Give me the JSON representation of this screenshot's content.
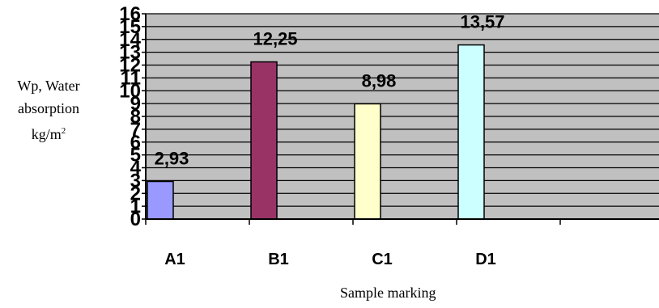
{
  "chart_data": {
    "type": "bar",
    "categories": [
      "A1",
      "B1",
      "C1",
      "D1"
    ],
    "values": [
      2.93,
      12.25,
      8.98,
      13.57
    ],
    "value_labels": [
      "2,93",
      "12,25",
      "8,98",
      "13,57"
    ],
    "ylabel_lines": [
      "Wp, Water",
      "absorption",
      "kg/m"
    ],
    "ylabel_superscript": "2",
    "xlabel": "Sample marking",
    "ylim": [
      0,
      16
    ],
    "yticks": [
      "0",
      "1",
      "2",
      "3",
      "4",
      "5",
      "6",
      "7",
      "8",
      "9",
      "10",
      "11",
      "12",
      "13",
      "14",
      "15",
      "16"
    ],
    "grid": true,
    "colors": {
      "plot_background": "#c0c0c0",
      "bars": [
        "#9999ff",
        "#993366",
        "#ffffcc",
        "#ccffff"
      ]
    }
  }
}
